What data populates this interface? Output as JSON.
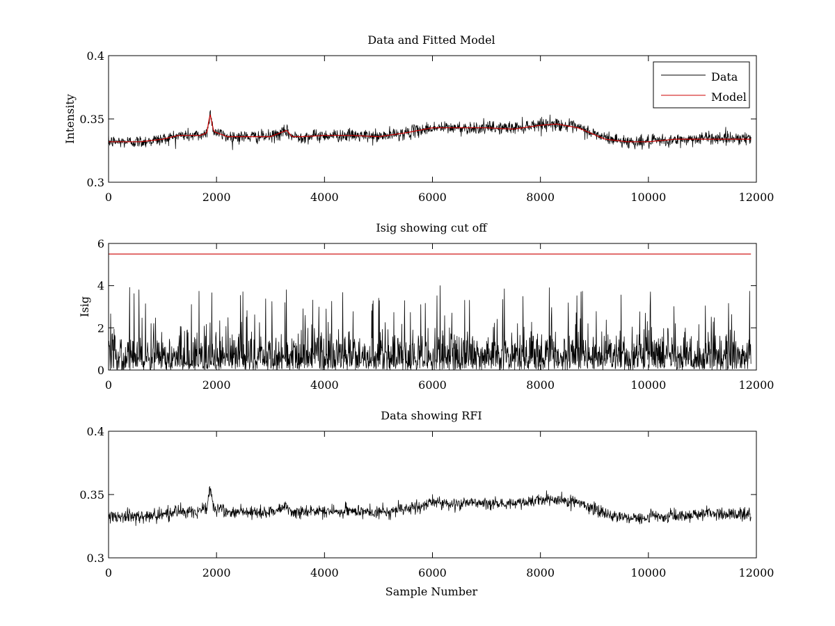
{
  "chart_data": [
    {
      "type": "line",
      "title": "Data and Fitted Model",
      "xlabel": "",
      "ylabel": "Intensity",
      "xlim": [
        0,
        12000
      ],
      "ylim": [
        0.3,
        0.4
      ],
      "xticks": [
        0,
        2000,
        4000,
        6000,
        8000,
        10000,
        12000
      ],
      "xtick_labels": [
        "0",
        "2000",
        "4000",
        "6000",
        "8000",
        "10000",
        "12000"
      ],
      "yticks": [
        0.3,
        0.35,
        0.4
      ],
      "ytick_labels": [
        "0.3",
        "0.35",
        "0.4"
      ],
      "grid": false,
      "legend_position": "top-right",
      "series": [
        {
          "name": "Data",
          "color": "#000000",
          "kind": "noisy",
          "sample_count": 11900,
          "noise_amplitude": 0.0045,
          "x": [
            0,
            600,
            1000,
            1300,
            1700,
            1820,
            1880,
            1950,
            2200,
            3000,
            3300,
            3400,
            3600,
            4000,
            4500,
            5000,
            5500,
            6000,
            7000,
            7500,
            8000,
            8300,
            8700,
            9200,
            9600,
            10000,
            10500,
            11000,
            11900
          ],
          "y": [
            0.332,
            0.332,
            0.334,
            0.337,
            0.337,
            0.339,
            0.355,
            0.34,
            0.336,
            0.336,
            0.34,
            0.336,
            0.336,
            0.337,
            0.337,
            0.336,
            0.339,
            0.343,
            0.343,
            0.343,
            0.346,
            0.346,
            0.343,
            0.335,
            0.332,
            0.332,
            0.333,
            0.335,
            0.335
          ]
        },
        {
          "name": "Model",
          "color": "#cc0000",
          "kind": "smooth",
          "x": [
            0,
            600,
            1000,
            1300,
            1700,
            1820,
            1880,
            1950,
            2200,
            3000,
            3300,
            3400,
            3600,
            4000,
            4500,
            5000,
            5500,
            6000,
            7000,
            7500,
            8000,
            8300,
            8700,
            9200,
            9600,
            10000,
            10500,
            11000,
            11900
          ],
          "y": [
            0.332,
            0.332,
            0.334,
            0.337,
            0.337,
            0.339,
            0.354,
            0.34,
            0.336,
            0.336,
            0.341,
            0.336,
            0.336,
            0.337,
            0.337,
            0.336,
            0.339,
            0.343,
            0.343,
            0.342,
            0.345,
            0.346,
            0.343,
            0.334,
            0.332,
            0.332,
            0.334,
            0.334,
            0.334
          ]
        }
      ]
    },
    {
      "type": "line",
      "title": "Isig showing cut off",
      "xlabel": "",
      "ylabel": "Isig",
      "xlim": [
        0,
        12000
      ],
      "ylim": [
        0,
        6
      ],
      "xticks": [
        0,
        2000,
        4000,
        6000,
        8000,
        10000,
        12000
      ],
      "xtick_labels": [
        "0",
        "2000",
        "4000",
        "6000",
        "8000",
        "10000",
        "12000"
      ],
      "yticks": [
        0,
        2,
        4,
        6
      ],
      "ytick_labels": [
        "0",
        "2",
        "4",
        "6"
      ],
      "grid": false,
      "series": [
        {
          "color": "#000000",
          "kind": "abs-noise",
          "sample_count": 11900,
          "typical_max": 4.0
        },
        {
          "color": "#cc0000",
          "kind": "flat",
          "x": [
            0,
            11900
          ],
          "y": [
            5.5,
            5.5
          ]
        }
      ]
    },
    {
      "type": "line",
      "title": "Data showing RFI",
      "xlabel": "Sample Number",
      "ylabel": "",
      "xlim": [
        0,
        12000
      ],
      "ylim": [
        0.3,
        0.4
      ],
      "xticks": [
        0,
        2000,
        4000,
        6000,
        8000,
        10000,
        12000
      ],
      "xtick_labels": [
        "0",
        "2000",
        "4000",
        "6000",
        "8000",
        "10000",
        "12000"
      ],
      "yticks": [
        0.3,
        0.35,
        0.4
      ],
      "ytick_labels": [
        "0.3",
        "0.35",
        "0.4"
      ],
      "grid": false,
      "series": [
        {
          "color": "#000000",
          "kind": "noisy",
          "sample_count": 11900,
          "noise_amplitude": 0.0045,
          "x": [
            0,
            600,
            1000,
            1300,
            1700,
            1820,
            1880,
            1950,
            2200,
            3000,
            3300,
            3400,
            3600,
            4000,
            4500,
            5000,
            5500,
            6000,
            7000,
            7500,
            8000,
            8300,
            8700,
            9200,
            9600,
            10000,
            10500,
            11000,
            11900
          ],
          "y": [
            0.332,
            0.332,
            0.334,
            0.337,
            0.337,
            0.339,
            0.355,
            0.34,
            0.336,
            0.336,
            0.34,
            0.336,
            0.336,
            0.337,
            0.337,
            0.336,
            0.339,
            0.343,
            0.343,
            0.343,
            0.346,
            0.346,
            0.343,
            0.335,
            0.332,
            0.332,
            0.333,
            0.335,
            0.335
          ]
        }
      ]
    }
  ]
}
